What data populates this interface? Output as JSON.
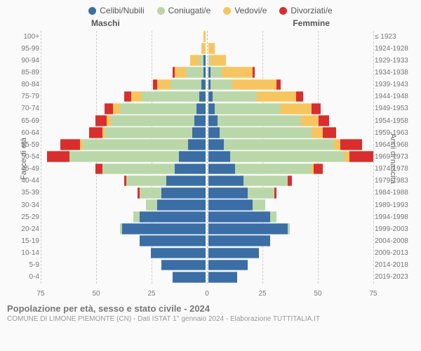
{
  "legend": [
    {
      "label": "Celibi/Nubili",
      "color": "#3b6ea5"
    },
    {
      "label": "Coniugati/e",
      "color": "#b9d7a8"
    },
    {
      "label": "Vedovi/e",
      "color": "#f7c55f"
    },
    {
      "label": "Divorziati/e",
      "color": "#d92e2e"
    }
  ],
  "headers": {
    "male": "Maschi",
    "female": "Femmine"
  },
  "axis": {
    "left_title": "Fasce di età",
    "right_title": "Anni di nascita",
    "x_max": 75,
    "x_ticks": [
      75,
      50,
      25,
      0,
      25,
      50,
      75
    ]
  },
  "colors": {
    "celibi": "#3b6ea5",
    "coniugati": "#b9d7a8",
    "vedovi": "#f7c55f",
    "divorziati": "#d92e2e",
    "grid": "#cccccc",
    "bg": "#fafafa"
  },
  "rows": [
    {
      "age": "100+",
      "birth": "≤ 1923",
      "m": [
        0,
        0,
        1,
        0
      ],
      "f": [
        0,
        0,
        0,
        0
      ]
    },
    {
      "age": "95-99",
      "birth": "1924-1928",
      "m": [
        0,
        0,
        2,
        0
      ],
      "f": [
        0,
        0,
        3,
        0
      ]
    },
    {
      "age": "90-94",
      "birth": "1929-1933",
      "m": [
        1,
        2,
        4,
        0
      ],
      "f": [
        0,
        1,
        7,
        0
      ]
    },
    {
      "age": "85-89",
      "birth": "1934-1938",
      "m": [
        1,
        8,
        5,
        1
      ],
      "f": [
        1,
        5,
        14,
        1
      ]
    },
    {
      "age": "80-84",
      "birth": "1939-1943",
      "m": [
        2,
        14,
        6,
        2
      ],
      "f": [
        1,
        10,
        20,
        2
      ]
    },
    {
      "age": "75-79",
      "birth": "1944-1948",
      "m": [
        3,
        26,
        5,
        3
      ],
      "f": [
        2,
        20,
        18,
        3
      ]
    },
    {
      "age": "70-74",
      "birth": "1949-1953",
      "m": [
        4,
        35,
        3,
        4
      ],
      "f": [
        3,
        30,
        14,
        4
      ]
    },
    {
      "age": "65-69",
      "birth": "1954-1958",
      "m": [
        5,
        38,
        2,
        5
      ],
      "f": [
        4,
        38,
        8,
        5
      ]
    },
    {
      "age": "60-64",
      "birth": "1959-1963",
      "m": [
        6,
        40,
        1,
        6
      ],
      "f": [
        5,
        42,
        5,
        6
      ]
    },
    {
      "age": "55-59",
      "birth": "1964-1968",
      "m": [
        8,
        48,
        1,
        9
      ],
      "f": [
        7,
        50,
        3,
        10
      ]
    },
    {
      "age": "50-54",
      "birth": "1969-1973",
      "m": [
        12,
        50,
        0,
        10
      ],
      "f": [
        10,
        52,
        2,
        11
      ]
    },
    {
      "age": "45-49",
      "birth": "1974-1978",
      "m": [
        14,
        33,
        0,
        3
      ],
      "f": [
        12,
        35,
        1,
        4
      ]
    },
    {
      "age": "40-44",
      "birth": "1979-1983",
      "m": [
        18,
        18,
        0,
        1
      ],
      "f": [
        16,
        20,
        0,
        2
      ]
    },
    {
      "age": "35-39",
      "birth": "1984-1988",
      "m": [
        20,
        10,
        0,
        1
      ],
      "f": [
        18,
        12,
        0,
        1
      ]
    },
    {
      "age": "30-34",
      "birth": "1989-1993",
      "m": [
        22,
        5,
        0,
        0
      ],
      "f": [
        20,
        6,
        0,
        0
      ]
    },
    {
      "age": "25-29",
      "birth": "1994-1998",
      "m": [
        30,
        3,
        0,
        0
      ],
      "f": [
        28,
        3,
        0,
        0
      ]
    },
    {
      "age": "20-24",
      "birth": "1999-2003",
      "m": [
        38,
        1,
        0,
        0
      ],
      "f": [
        36,
        1,
        0,
        0
      ]
    },
    {
      "age": "15-19",
      "birth": "2004-2008",
      "m": [
        30,
        0,
        0,
        0
      ],
      "f": [
        28,
        0,
        0,
        0
      ]
    },
    {
      "age": "10-14",
      "birth": "2009-2013",
      "m": [
        25,
        0,
        0,
        0
      ],
      "f": [
        23,
        0,
        0,
        0
      ]
    },
    {
      "age": "5-9",
      "birth": "2014-2018",
      "m": [
        20,
        0,
        0,
        0
      ],
      "f": [
        18,
        0,
        0,
        0
      ]
    },
    {
      "age": "0-4",
      "birth": "2019-2023",
      "m": [
        15,
        0,
        0,
        0
      ],
      "f": [
        13,
        0,
        0,
        0
      ]
    }
  ],
  "footer": {
    "title": "Popolazione per età, sesso e stato civile - 2024",
    "sub": "COMUNE DI LIMONE PIEMONTE (CN) - Dati ISTAT 1° gennaio 2024 - Elaborazione TUTTITALIA.IT"
  }
}
